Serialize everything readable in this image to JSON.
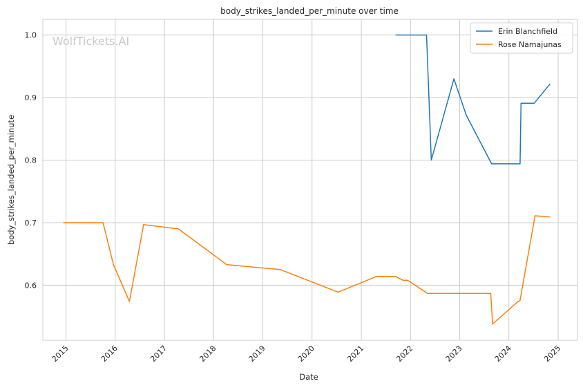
{
  "chart_data": {
    "type": "line",
    "title": "body_strikes_landed_per_minute over time",
    "xlabel": "Date",
    "ylabel": "body_strikes_landed_per_minute",
    "watermark": "WolfTickets.AI",
    "x_ticks": [
      "2015",
      "2016",
      "2017",
      "2018",
      "2019",
      "2020",
      "2021",
      "2022",
      "2023",
      "2024",
      "2025"
    ],
    "y_ticks": [
      "0.6",
      "0.7",
      "0.8",
      "0.9",
      "1.0"
    ],
    "xlim": [
      "2014-07-13",
      "2025-05-24"
    ],
    "ylim": [
      0.512,
      1.025
    ],
    "grid": true,
    "legend_position": "top-right",
    "series": [
      {
        "name": "Erin Blanchfield",
        "color": "#1f77b4",
        "points": [
          {
            "x": "2021-09-12",
            "y": 1.0
          },
          {
            "x": "2022-04-30",
            "y": 1.0
          },
          {
            "x": "2022-06-04",
            "y": 0.8
          },
          {
            "x": "2022-11-19",
            "y": 0.93
          },
          {
            "x": "2023-02-18",
            "y": 0.872
          },
          {
            "x": "2023-08-26",
            "y": 0.794
          },
          {
            "x": "2024-03-24",
            "y": 0.794
          },
          {
            "x": "2024-03-31",
            "y": 0.891
          },
          {
            "x": "2024-07-07",
            "y": 0.891
          },
          {
            "x": "2024-11-02",
            "y": 0.922
          }
        ]
      },
      {
        "name": "Rose Namajunas",
        "color": "#ff7f0e",
        "points": [
          {
            "x": "2014-12-12",
            "y": 0.7
          },
          {
            "x": "2015-10-03",
            "y": 0.7
          },
          {
            "x": "2015-12-19",
            "y": 0.633
          },
          {
            "x": "2016-04-16",
            "y": 0.574
          },
          {
            "x": "2016-07-30",
            "y": 0.697
          },
          {
            "x": "2017-04-15",
            "y": 0.69
          },
          {
            "x": "2018-04-07",
            "y": 0.633
          },
          {
            "x": "2019-05-11",
            "y": 0.625
          },
          {
            "x": "2020-07-12",
            "y": 0.589
          },
          {
            "x": "2021-04-24",
            "y": 0.614
          },
          {
            "x": "2021-09-12",
            "y": 0.614
          },
          {
            "x": "2021-11-06",
            "y": 0.608
          },
          {
            "x": "2021-12-11",
            "y": 0.608
          },
          {
            "x": "2022-05-07",
            "y": 0.587
          },
          {
            "x": "2023-08-19",
            "y": 0.587
          },
          {
            "x": "2023-09-02",
            "y": 0.538
          },
          {
            "x": "2024-03-09",
            "y": 0.574
          },
          {
            "x": "2024-03-23",
            "y": 0.575
          },
          {
            "x": "2024-07-13",
            "y": 0.711
          },
          {
            "x": "2024-11-02",
            "y": 0.709
          }
        ]
      }
    ]
  }
}
